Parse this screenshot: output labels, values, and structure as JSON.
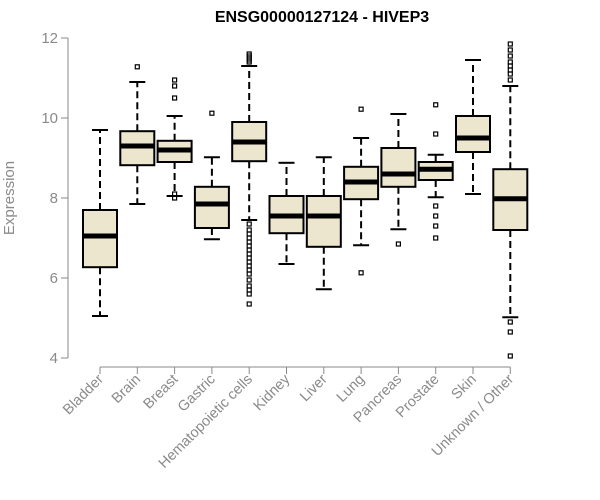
{
  "chart_data": {
    "type": "boxplot",
    "title": "ENSG00000127124 - HIVEP3",
    "xlabel": "",
    "ylabel": "Expression",
    "ylim": [
      4,
      12
    ],
    "yticks": [
      4,
      6,
      8,
      10,
      12
    ],
    "colors": {
      "box_fill": "#EDE6CF",
      "stroke": "#000000",
      "axis": "#8a8a8a"
    },
    "categories": [
      "Bladder",
      "Brain",
      "Breast",
      "Gastric",
      "Hematopoietic cells",
      "Kidney",
      "Liver",
      "Lung",
      "Pancreas",
      "Prostate",
      "Skin",
      "Unknown / Other"
    ],
    "boxes": [
      {
        "name": "Bladder",
        "whisker_low": 5.05,
        "q1": 6.27,
        "median": 7.05,
        "q3": 7.7,
        "whisker_high": 9.7,
        "outliers": []
      },
      {
        "name": "Brain",
        "whisker_low": 7.85,
        "q1": 8.82,
        "median": 9.3,
        "q3": 9.67,
        "whisker_high": 10.9,
        "outliers": [
          11.28
        ]
      },
      {
        "name": "Breast",
        "whisker_low": 8.05,
        "q1": 8.9,
        "median": 9.2,
        "q3": 9.43,
        "whisker_high": 10.05,
        "outliers": [
          10.5,
          10.8,
          10.95,
          8.0,
          8.1
        ]
      },
      {
        "name": "Gastric",
        "whisker_low": 6.97,
        "q1": 7.25,
        "median": 7.85,
        "q3": 8.28,
        "whisker_high": 9.02,
        "outliers": [
          10.12
        ]
      },
      {
        "name": "Hematopoietic cells",
        "whisker_low": 7.45,
        "q1": 8.92,
        "median": 9.4,
        "q3": 9.9,
        "whisker_high": 11.3,
        "outliers": [
          11.45,
          11.55,
          11.6,
          11.5,
          11.4,
          7.35,
          7.2,
          7.1,
          7.0,
          6.9,
          6.8,
          6.7,
          6.6,
          6.5,
          6.4,
          6.3,
          6.2,
          6.1,
          5.95,
          5.8,
          5.7,
          5.6,
          5.35
        ]
      },
      {
        "name": "Kidney",
        "whisker_low": 6.35,
        "q1": 7.12,
        "median": 7.55,
        "q3": 8.05,
        "whisker_high": 8.88,
        "outliers": []
      },
      {
        "name": "Liver",
        "whisker_low": 5.72,
        "q1": 6.78,
        "median": 7.55,
        "q3": 8.05,
        "whisker_high": 9.02,
        "outliers": []
      },
      {
        "name": "Lung",
        "whisker_low": 6.82,
        "q1": 7.97,
        "median": 8.4,
        "q3": 8.78,
        "whisker_high": 9.5,
        "outliers": [
          10.22,
          6.13
        ]
      },
      {
        "name": "Pancreas",
        "whisker_low": 7.22,
        "q1": 8.28,
        "median": 8.6,
        "q3": 9.25,
        "whisker_high": 10.1,
        "outliers": [
          6.85
        ]
      },
      {
        "name": "Prostate",
        "whisker_low": 8.02,
        "q1": 8.45,
        "median": 8.72,
        "q3": 8.9,
        "whisker_high": 9.08,
        "outliers": [
          10.33,
          9.6,
          7.8,
          7.55,
          7.3,
          7.0
        ]
      },
      {
        "name": "Skin",
        "whisker_low": 8.1,
        "q1": 9.15,
        "median": 9.5,
        "q3": 10.05,
        "whisker_high": 11.45,
        "outliers": []
      },
      {
        "name": "Unknown / Other",
        "whisker_low": 5.02,
        "q1": 7.2,
        "median": 7.98,
        "q3": 8.72,
        "whisker_high": 10.8,
        "outliers": [
          11.85,
          11.7,
          11.55,
          11.4,
          11.3,
          11.2,
          11.1,
          10.95,
          4.9,
          4.65,
          4.05
        ]
      }
    ]
  }
}
